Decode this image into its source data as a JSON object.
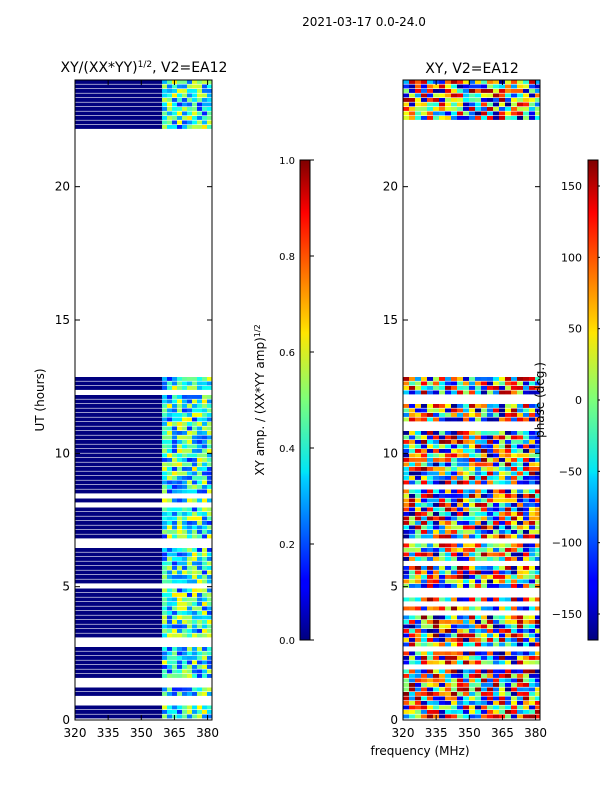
{
  "suptitle": "2021-03-17 0.0-24.0",
  "xlabel": "frequency (MHz)",
  "chart_data": [
    {
      "type": "heatmap",
      "title_main": "XY/(XX*YY)",
      "title_sup": "1/2",
      "title_tail": ", V2=EA12",
      "ylabel": "UT (hours)",
      "xlim": [
        320,
        382
      ],
      "ylim": [
        0,
        24
      ],
      "xticks": [
        320,
        335,
        350,
        365,
        380
      ],
      "yticks": [
        0,
        5,
        10,
        15,
        20
      ],
      "colorbar": {
        "label_main": "XY amp. / (XX*YY amp)",
        "label_sup": "1/2",
        "range": [
          0.0,
          1.0
        ],
        "ticks": [
          "0.0",
          "0.2",
          "0.4",
          "0.6",
          "0.8",
          "1.0"
        ]
      }
    },
    {
      "type": "heatmap",
      "title": "XY, V2=EA12",
      "xlim": [
        320,
        382
      ],
      "ylim": [
        0,
        24
      ],
      "xticks": [
        320,
        335,
        350,
        365,
        380
      ],
      "yticks": [
        0,
        5,
        10,
        15,
        20
      ],
      "colorbar": {
        "label": "phase (deg.)",
        "range": [
          -180,
          180
        ],
        "ticks": [
          "150",
          "100",
          "50",
          "0",
          "−50",
          "−100",
          "−150"
        ]
      }
    }
  ]
}
